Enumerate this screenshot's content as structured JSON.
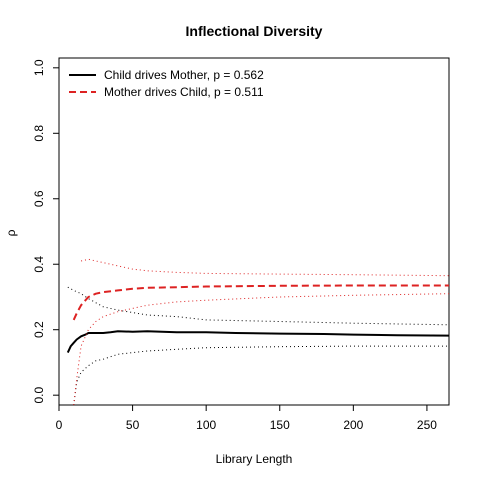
{
  "chart_data": {
    "type": "line",
    "title": "Inflectional Diversity",
    "xlabel": "Library Length",
    "ylabel": "ρ",
    "xlim": [
      0,
      265
    ],
    "ylim": [
      -0.03,
      1.03
    ],
    "xticks": [
      0,
      50,
      100,
      150,
      200,
      250
    ],
    "yticks": [
      0.0,
      0.2,
      0.4,
      0.6,
      0.8,
      1.0
    ],
    "xtick_labels": [
      "0",
      "50",
      "100",
      "150",
      "200",
      "250"
    ],
    "ytick_labels": [
      "0.0",
      "0.2",
      "0.4",
      "0.6",
      "0.8",
      "1.0"
    ],
    "grid": false,
    "legend_position": "top-left",
    "series": [
      {
        "name": "Child drives Mother, p = 0.562",
        "color": "#000000",
        "style": "solid",
        "x": [
          6,
          8,
          10,
          12,
          15,
          18,
          20,
          25,
          30,
          35,
          40,
          50,
          60,
          80,
          100,
          120,
          150,
          180,
          200,
          230,
          265
        ],
        "y": [
          0.13,
          0.15,
          0.16,
          0.17,
          0.18,
          0.185,
          0.19,
          0.19,
          0.19,
          0.192,
          0.195,
          0.194,
          0.195,
          0.192,
          0.192,
          0.19,
          0.188,
          0.187,
          0.185,
          0.183,
          0.182
        ]
      },
      {
        "name": "",
        "color": "#000000",
        "style": "dotted",
        "x": [
          6,
          10,
          15,
          20,
          30,
          40,
          60,
          80,
          100,
          150,
          200,
          265
        ],
        "y": [
          0.33,
          0.32,
          0.31,
          0.295,
          0.27,
          0.26,
          0.245,
          0.24,
          0.23,
          0.225,
          0.22,
          0.215
        ]
      },
      {
        "name": "",
        "color": "#000000",
        "style": "dotted",
        "x": [
          10,
          12,
          15,
          20,
          25,
          30,
          40,
          50,
          60,
          80,
          100,
          150,
          200,
          265
        ],
        "y": [
          -0.03,
          0.04,
          0.07,
          0.09,
          0.105,
          0.11,
          0.125,
          0.13,
          0.135,
          0.14,
          0.145,
          0.148,
          0.15,
          0.15
        ]
      },
      {
        "name": "Mother drives Child, p = 0.511",
        "color": "#dd2222",
        "style": "dashed",
        "x": [
          10,
          12,
          15,
          18,
          20,
          25,
          30,
          40,
          50,
          60,
          80,
          100,
          150,
          200,
          265
        ],
        "y": [
          0.23,
          0.25,
          0.275,
          0.29,
          0.3,
          0.31,
          0.315,
          0.32,
          0.325,
          0.328,
          0.33,
          0.332,
          0.334,
          0.335,
          0.335
        ]
      },
      {
        "name": "",
        "color": "#dd2222",
        "style": "dotted",
        "x": [
          15,
          20,
          25,
          30,
          40,
          50,
          60,
          80,
          100,
          150,
          200,
          265
        ],
        "y": [
          0.41,
          0.415,
          0.41,
          0.405,
          0.395,
          0.385,
          0.38,
          0.375,
          0.372,
          0.37,
          0.368,
          0.365
        ]
      },
      {
        "name": "",
        "color": "#dd2222",
        "style": "dotted",
        "x": [
          10,
          12,
          15,
          20,
          25,
          30,
          40,
          50,
          60,
          80,
          100,
          150,
          200,
          265
        ],
        "y": [
          -0.03,
          0.05,
          0.15,
          0.2,
          0.225,
          0.24,
          0.255,
          0.265,
          0.275,
          0.285,
          0.29,
          0.3,
          0.305,
          0.31
        ]
      }
    ]
  }
}
